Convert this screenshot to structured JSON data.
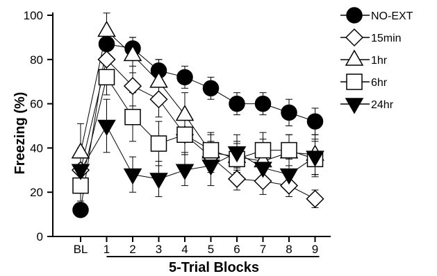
{
  "chart_data": {
    "type": "line",
    "xlabel": "5-Trial Blocks",
    "ylabel": "Freezing (%)",
    "ylim": [
      0,
      100
    ],
    "yticks": [
      0,
      20,
      40,
      60,
      80,
      100
    ],
    "categories": [
      "BL",
      "1",
      "2",
      "3",
      "4",
      "5",
      "6",
      "7",
      "8",
      "9"
    ],
    "bracket_categories": [
      "1",
      "9"
    ],
    "legend_position": "top-right",
    "series": [
      {
        "name": "NO-EXT",
        "marker": "circle",
        "fill": "#000000",
        "values": [
          12,
          87,
          85,
          75,
          72,
          67,
          60,
          60,
          56,
          52
        ],
        "errors": [
          2,
          3,
          5,
          5,
          5,
          5,
          5,
          5,
          6,
          6
        ]
      },
      {
        "name": "15min",
        "marker": "diamond",
        "fill": "#ffffff",
        "values": [
          30,
          80,
          68,
          62,
          46,
          36,
          26,
          25,
          23,
          17
        ],
        "errors": [
          7,
          6,
          9,
          8,
          8,
          7,
          5,
          6,
          5,
          4
        ]
      },
      {
        "name": "1hr",
        "marker": "triangle-up",
        "fill": "#ffffff",
        "values": [
          38,
          93,
          82,
          70,
          55,
          38,
          36,
          34,
          38,
          37
        ],
        "errors": [
          13,
          8,
          8,
          10,
          10,
          8,
          7,
          10,
          8,
          9
        ]
      },
      {
        "name": "6hr",
        "marker": "square",
        "fill": "#ffffff",
        "values": [
          23,
          72,
          54,
          42,
          46,
          39,
          35,
          39,
          39,
          35
        ],
        "errors": [
          7,
          8,
          11,
          10,
          9,
          8,
          7,
          8,
          7,
          8
        ]
      },
      {
        "name": "24hr",
        "marker": "triangle-down",
        "fill": "#000000",
        "values": [
          30,
          50,
          28,
          26,
          30,
          32,
          38,
          31,
          28,
          36
        ],
        "errors": [
          10,
          12,
          8,
          8,
          7,
          9,
          8,
          7,
          7,
          8
        ]
      }
    ]
  }
}
